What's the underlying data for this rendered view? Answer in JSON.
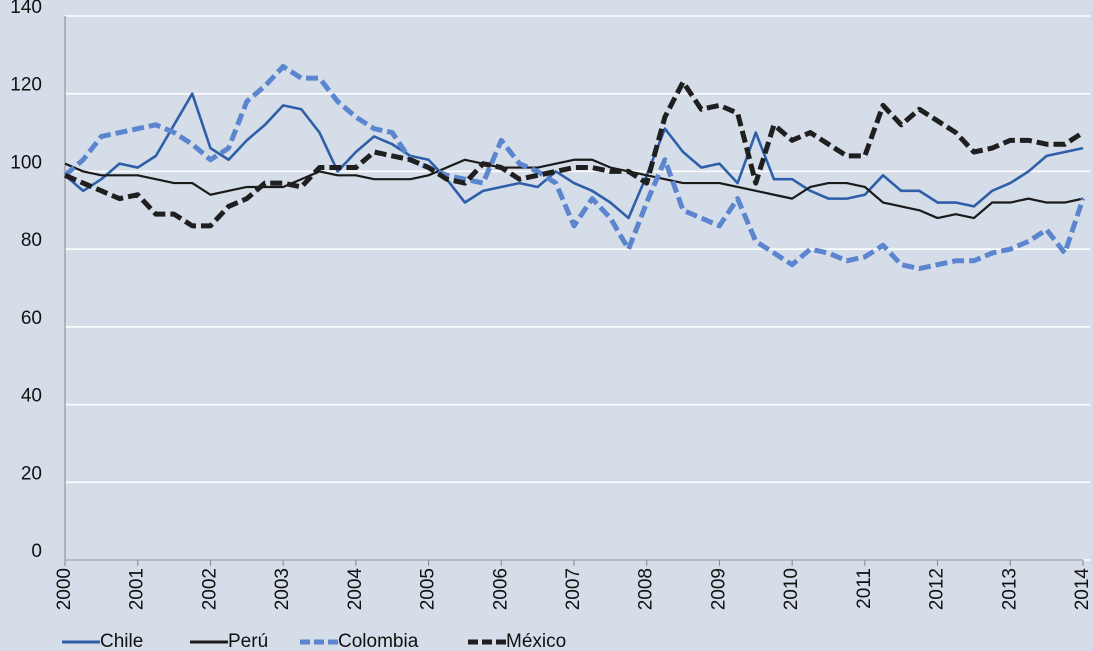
{
  "chart_data": {
    "type": "line",
    "x": [
      2000,
      2000.25,
      2000.5,
      2000.75,
      2001,
      2001.25,
      2001.5,
      2001.75,
      2002,
      2002.25,
      2002.5,
      2002.75,
      2003,
      2003.25,
      2003.5,
      2003.75,
      2004,
      2004.25,
      2004.5,
      2004.75,
      2005,
      2005.25,
      2005.5,
      2005.75,
      2006,
      2006.25,
      2006.5,
      2006.75,
      2007,
      2007.25,
      2007.5,
      2007.75,
      2008,
      2008.25,
      2008.5,
      2008.75,
      2009,
      2009.25,
      2009.5,
      2009.75,
      2010,
      2010.25,
      2010.5,
      2010.75,
      2011,
      2011.25,
      2011.5,
      2011.75,
      2012,
      2012.25,
      2012.5,
      2012.75,
      2013,
      2013.25,
      2013.5,
      2013.75,
      2014
    ],
    "series": [
      {
        "name": "Chile",
        "color": "#2e5fa8",
        "dashed": false,
        "values": [
          99,
          95,
          98,
          102,
          101,
          104,
          112,
          120,
          106,
          103,
          108,
          112,
          117,
          116,
          110,
          100,
          105,
          109,
          107,
          104,
          103,
          98,
          92,
          95,
          96,
          97,
          96,
          100,
          97,
          95,
          92,
          88,
          99,
          111,
          105,
          101,
          102,
          97,
          110,
          98,
          98,
          95,
          93,
          93,
          94,
          99,
          95,
          95,
          92,
          92,
          91,
          95,
          97,
          100,
          104,
          105,
          106
        ]
      },
      {
        "name": "Perú",
        "color": "#1a1a1a",
        "dashed": false,
        "values": [
          102,
          100,
          99,
          99,
          99,
          98,
          97,
          97,
          94,
          95,
          96,
          96,
          96,
          98,
          100,
          99,
          99,
          98,
          98,
          98,
          99,
          101,
          103,
          102,
          101,
          101,
          101,
          102,
          103,
          103,
          101,
          100,
          99,
          98,
          97,
          97,
          97,
          96,
          95,
          94,
          93,
          96,
          97,
          97,
          96,
          92,
          91,
          90,
          88,
          89,
          88,
          92,
          92,
          93,
          92,
          92,
          93
        ]
      },
      {
        "name": "Colombia",
        "color": "#5b86cf",
        "dashed": true,
        "values": [
          99,
          103,
          109,
          110,
          111,
          112,
          110,
          107,
          103,
          106,
          118,
          122,
          127,
          124,
          124,
          118,
          114,
          111,
          110,
          103,
          101,
          99,
          98,
          97,
          108,
          102,
          100,
          97,
          86,
          93,
          88,
          80,
          92,
          103,
          90,
          88,
          86,
          93,
          82,
          79,
          76,
          80,
          79,
          77,
          78,
          81,
          76,
          75,
          76,
          77,
          77,
          79,
          80,
          82,
          85,
          79,
          93
        ]
      },
      {
        "name": "México",
        "color": "#1f1f1f",
        "dashed": true,
        "values": [
          99,
          97,
          95,
          93,
          94,
          89,
          89,
          86,
          86,
          91,
          93,
          97,
          97,
          96,
          101,
          101,
          101,
          105,
          104,
          103,
          101,
          98,
          97,
          102,
          101,
          98,
          99,
          100,
          101,
          101,
          100,
          100,
          97,
          114,
          123,
          116,
          117,
          115,
          97,
          112,
          108,
          110,
          107,
          104,
          104,
          117,
          112,
          116,
          113,
          110,
          105,
          106,
          108,
          108,
          107,
          107,
          110
        ]
      }
    ],
    "xlim": [
      2000,
      2014
    ],
    "xticks": [
      2000,
      2001,
      2002,
      2003,
      2004,
      2005,
      2006,
      2007,
      2008,
      2009,
      2010,
      2011,
      2012,
      2013,
      2014
    ],
    "ylim": [
      0,
      140
    ],
    "yticks": [
      0,
      20,
      40,
      60,
      80,
      100,
      120,
      140
    ],
    "grid": true,
    "legend": "bottom"
  }
}
